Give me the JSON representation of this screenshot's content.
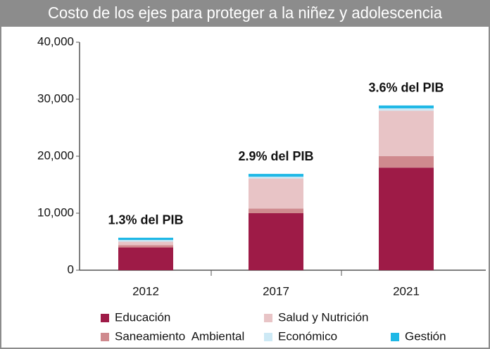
{
  "chart_data": {
    "type": "stacked_bar",
    "title": "Costo de los ejes para proteger a la niñez y adolescencia",
    "categories": [
      "2012",
      "2017",
      "2021"
    ],
    "series": [
      {
        "name": "Educación",
        "color": "#9e1b47",
        "values": [
          4000,
          10000,
          18000
        ]
      },
      {
        "name": "Saneamiento  Ambiental",
        "color": "#cf8a8e",
        "values": [
          400,
          800,
          2000
        ]
      },
      {
        "name": "Salud y Nutrición",
        "color": "#e8c4c6",
        "values": [
          600,
          5300,
          8000
        ]
      },
      {
        "name": "Económico",
        "color": "#cde9f5",
        "values": [
          300,
          300,
          400
        ]
      },
      {
        "name": "Gestión",
        "color": "#1fb8e6",
        "values": [
          400,
          500,
          500
        ]
      }
    ],
    "annotations": [
      "1.3% del PIB",
      "2.9% del PIB",
      "3.6% del PIB"
    ],
    "ylim": [
      0,
      40000
    ],
    "yticks": [
      0,
      {
        "value": 10000,
        "label": "10,000"
      },
      {
        "value": 20000,
        "label": "20,000"
      },
      {
        "value": 30000,
        "label": "30,000"
      },
      {
        "value": 40000,
        "label": "40,000"
      }
    ],
    "grid": false
  }
}
